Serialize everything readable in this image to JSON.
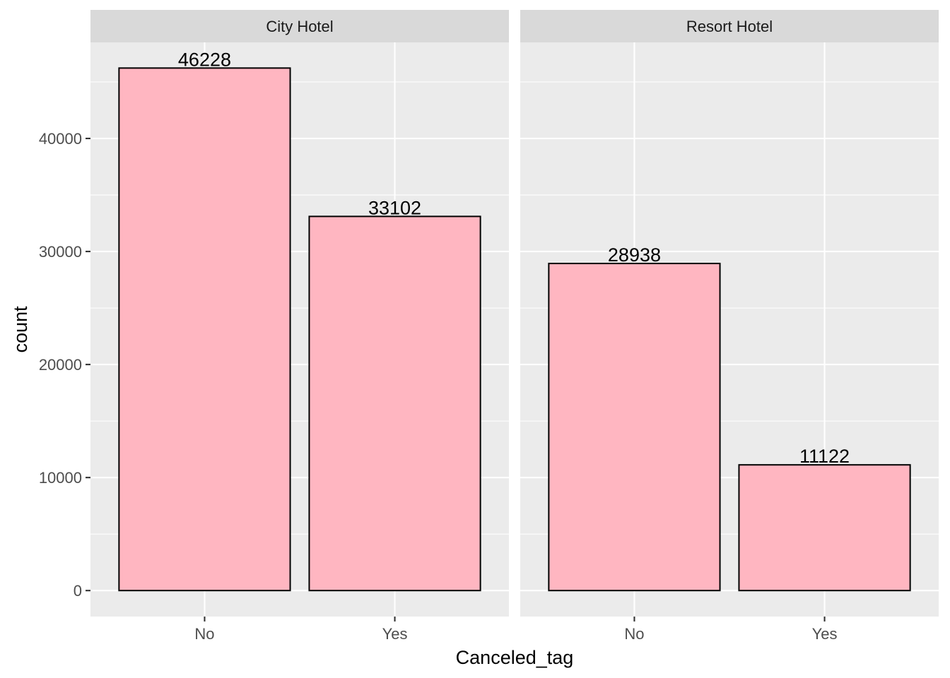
{
  "chart_data": {
    "type": "bar",
    "facet_by": "hotel",
    "xlabel": "Canceled_tag",
    "ylabel": "count",
    "categories": [
      "No",
      "Yes"
    ],
    "y_ticks": [
      0,
      10000,
      20000,
      30000,
      40000
    ],
    "ylim": [
      -2300,
      48500
    ],
    "colors": {
      "bar_fill": "#FFB6C1",
      "bar_stroke": "#000000",
      "panel": "#EBEBEB",
      "strip": "#D9D9D9"
    },
    "facets": [
      {
        "name": "City Hotel",
        "values": [
          46228,
          33102
        ],
        "labels": [
          "46228",
          "33102"
        ]
      },
      {
        "name": "Resort Hotel",
        "values": [
          28938,
          11122
        ],
        "labels": [
          "28938",
          "11122"
        ]
      }
    ]
  }
}
